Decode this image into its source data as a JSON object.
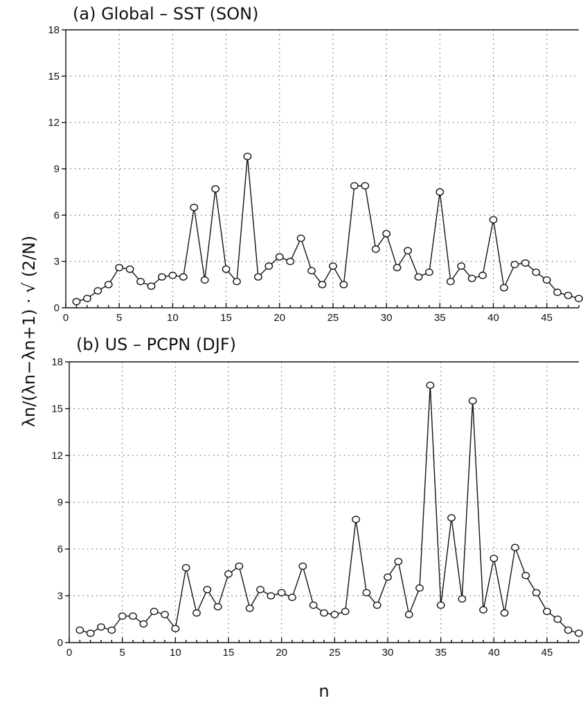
{
  "figure": {
    "ylabel": "λn/(λn−λn+1) · √ (2/N)",
    "xlabel": "n"
  },
  "chart_data": [
    {
      "type": "line",
      "title": "(a) Global –  SST (SON)",
      "xlim": [
        0,
        48
      ],
      "ylim": [
        0,
        18
      ],
      "xticks": [
        0,
        5,
        10,
        15,
        20,
        25,
        30,
        35,
        40,
        45
      ],
      "yticks": [
        0,
        3,
        6,
        9,
        12,
        15,
        18
      ],
      "grid": true,
      "x": [
        1,
        2,
        3,
        4,
        5,
        6,
        7,
        8,
        9,
        10,
        11,
        12,
        13,
        14,
        15,
        16,
        17,
        18,
        19,
        20,
        21,
        22,
        23,
        24,
        25,
        26,
        27,
        28,
        29,
        30,
        31,
        32,
        33,
        34,
        35,
        36,
        37,
        38,
        39,
        40,
        41,
        42,
        43,
        44,
        45,
        46,
        47,
        48
      ],
      "values": [
        0.4,
        0.6,
        1.1,
        1.5,
        2.6,
        2.5,
        1.7,
        1.4,
        2.0,
        2.1,
        2.0,
        6.5,
        1.8,
        7.7,
        2.5,
        1.7,
        9.8,
        2.0,
        2.7,
        3.3,
        3.0,
        4.5,
        2.4,
        1.5,
        2.7,
        1.5,
        7.9,
        7.9,
        3.8,
        4.8,
        2.6,
        3.7,
        2.0,
        2.3,
        7.5,
        1.7,
        2.7,
        1.9,
        2.1,
        5.7,
        1.3,
        2.8,
        2.9,
        2.3,
        1.8,
        1.0,
        0.8,
        0.6
      ]
    },
    {
      "type": "line",
      "title": "(b) US – PCPN (DJF)",
      "xlim": [
        0,
        48
      ],
      "ylim": [
        0,
        18
      ],
      "xticks": [
        0,
        5,
        10,
        15,
        20,
        25,
        30,
        35,
        40,
        45
      ],
      "yticks": [
        0,
        3,
        6,
        9,
        12,
        15,
        18
      ],
      "grid": true,
      "x": [
        1,
        2,
        3,
        4,
        5,
        6,
        7,
        8,
        9,
        10,
        11,
        12,
        13,
        14,
        15,
        16,
        17,
        18,
        19,
        20,
        21,
        22,
        23,
        24,
        25,
        26,
        27,
        28,
        29,
        30,
        31,
        32,
        33,
        34,
        35,
        36,
        37,
        38,
        39,
        40,
        41,
        42,
        43,
        44,
        45,
        46,
        47,
        48
      ],
      "values": [
        0.8,
        0.6,
        1.0,
        0.8,
        1.7,
        1.7,
        1.2,
        2.0,
        1.8,
        0.9,
        4.8,
        1.9,
        3.4,
        2.3,
        4.4,
        4.9,
        2.2,
        3.4,
        3.0,
        3.2,
        2.9,
        4.9,
        2.4,
        1.9,
        1.8,
        2.0,
        7.9,
        3.2,
        2.4,
        4.2,
        5.2,
        1.8,
        3.5,
        16.5,
        2.4,
        8.0,
        2.8,
        15.5,
        2.1,
        5.4,
        1.9,
        6.1,
        4.3,
        3.2,
        2.0,
        1.5,
        0.8,
        0.6
      ]
    }
  ]
}
